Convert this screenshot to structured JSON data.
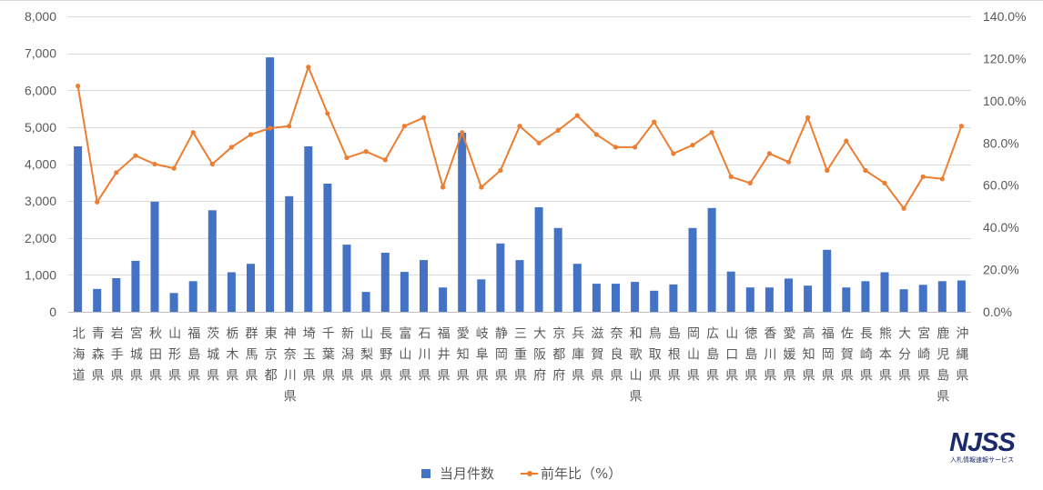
{
  "chart_data": {
    "type": "bar",
    "categories": [
      "北海道",
      "青森県",
      "岩手県",
      "宮城県",
      "秋田県",
      "山形県",
      "福島県",
      "茨城県",
      "栃木県",
      "群馬県",
      "東京都",
      "神奈川県",
      "埼玉県",
      "千葉県",
      "新潟県",
      "山梨県",
      "長野県",
      "富山県",
      "石川県",
      "福井県",
      "愛知県",
      "岐阜県",
      "静岡県",
      "三重県",
      "大阪府",
      "京都府",
      "兵庫県",
      "滋賀県",
      "奈良県",
      "和歌山県",
      "鳥取県",
      "島根県",
      "岡山県",
      "広島県",
      "山口県",
      "徳島県",
      "香川県",
      "愛媛県",
      "高知県",
      "福岡県",
      "佐賀県",
      "長崎県",
      "熊本県",
      "大分県",
      "宮崎県",
      "鹿児島県",
      "沖縄県"
    ],
    "series": [
      {
        "name": "当月件数",
        "type": "bar",
        "axis": "left",
        "color": "#4472C4",
        "values": [
          4480,
          620,
          910,
          1380,
          2980,
          510,
          830,
          2750,
          1070,
          1300,
          6890,
          3130,
          4480,
          3470,
          1820,
          540,
          1600,
          1080,
          1400,
          660,
          4850,
          880,
          1850,
          1400,
          2830,
          2270,
          1300,
          760,
          760,
          810,
          570,
          740,
          2270,
          2810,
          1090,
          660,
          660,
          900,
          710,
          1680,
          660,
          830,
          1070,
          610,
          730,
          830,
          850
        ]
      },
      {
        "name": "前年比（%）",
        "type": "line",
        "axis": "right",
        "color": "#ED7D31",
        "values": [
          107,
          52,
          66,
          74,
          70,
          68,
          85,
          70,
          78,
          84,
          87,
          88,
          116,
          94,
          73,
          76,
          72,
          88,
          92,
          59,
          85,
          59,
          67,
          88,
          80,
          86,
          93,
          84,
          78,
          78,
          90,
          75,
          79,
          85,
          64,
          61,
          75,
          71,
          92,
          67,
          81,
          67,
          61,
          49,
          64,
          63,
          88
        ]
      }
    ],
    "y_left": {
      "range": [
        0,
        8000
      ],
      "ticks": [
        "0",
        "1,000",
        "2,000",
        "3,000",
        "4,000",
        "5,000",
        "6,000",
        "7,000",
        "8,000"
      ]
    },
    "y_right": {
      "range": [
        0,
        140
      ],
      "ticks": [
        "0.0%",
        "20.0%",
        "40.0%",
        "60.0%",
        "80.0%",
        "100.0%",
        "120.0%",
        "140.0%"
      ]
    },
    "grid": true,
    "legend": "bottom-center"
  },
  "logo": {
    "text": "NJSS",
    "tagline": "入札情報速報サービス",
    "color": "#1B2A6B"
  }
}
